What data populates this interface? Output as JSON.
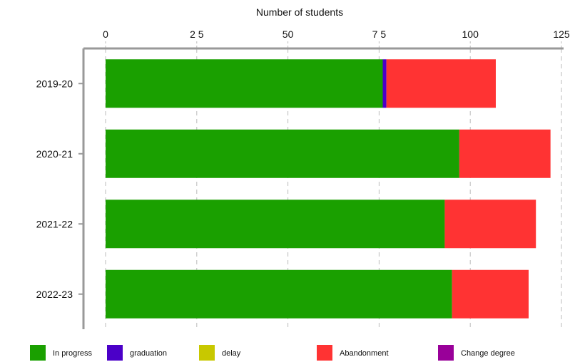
{
  "chart_data": {
    "type": "bar",
    "orientation": "horizontal",
    "stacked": true,
    "xlabel": "Number of students",
    "x_axis_position": "top",
    "xlim": [
      0,
      125
    ],
    "xticks": [
      0,
      25,
      50,
      75,
      100,
      125
    ],
    "xtick_labels": [
      "0",
      "2 5",
      "50",
      "7 5",
      "100",
      "125"
    ],
    "categories": [
      "2019-20",
      "2020-21",
      "2021-22",
      "2022-23"
    ],
    "series": [
      {
        "name": "In progress",
        "color": "#1aa000",
        "values": [
          76,
          97,
          93,
          95
        ]
      },
      {
        "name": "graduation",
        "color": "#4b00c8",
        "values": [
          1,
          0,
          0,
          0
        ]
      },
      {
        "name": "delay",
        "color": "#c8c800",
        "values": [
          0,
          0,
          0,
          0
        ]
      },
      {
        "name": "Abandonment",
        "color": "#ff3333",
        "values": [
          30,
          25,
          25,
          21
        ]
      },
      {
        "name": "Change degree",
        "color": "#990099",
        "values": [
          0,
          0,
          0,
          0
        ]
      }
    ],
    "grid": true,
    "legend_position": "bottom"
  }
}
